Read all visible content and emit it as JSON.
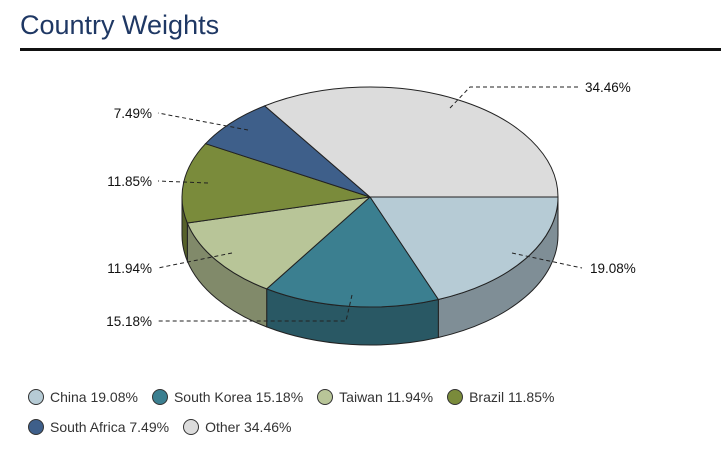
{
  "header": {
    "title": "Country Weights"
  },
  "chart_data": {
    "type": "pie",
    "style": "3d",
    "slices": [
      {
        "label": "China",
        "value": 19.08,
        "display": "19.08%",
        "color": "#b6cbd5",
        "side": "#7f8e96"
      },
      {
        "label": "South Korea",
        "value": 15.18,
        "display": "15.18%",
        "color": "#3b7f90",
        "side": "#295864"
      },
      {
        "label": "Taiwan",
        "value": 11.94,
        "display": "11.94%",
        "color": "#b8c598",
        "side": "#818a6a"
      },
      {
        "label": "Brazil",
        "value": 11.85,
        "display": "11.85%",
        "color": "#7a8b3b",
        "side": "#566129"
      },
      {
        "label": "South Africa",
        "value": 7.49,
        "display": "7.49%",
        "color": "#3e5f8a",
        "side": "#2b4361"
      },
      {
        "label": "Other",
        "value": 34.46,
        "display": "34.46%",
        "color": "#dcdcdc",
        "side": "#9a9a9a"
      }
    ]
  },
  "legend": {
    "rows": [
      [
        "China 19.08%",
        "South Korea 15.18%",
        "Taiwan 11.94%",
        "Brazil 11.85%"
      ],
      [
        "South Africa 7.49%",
        "Other 34.46%"
      ]
    ]
  }
}
